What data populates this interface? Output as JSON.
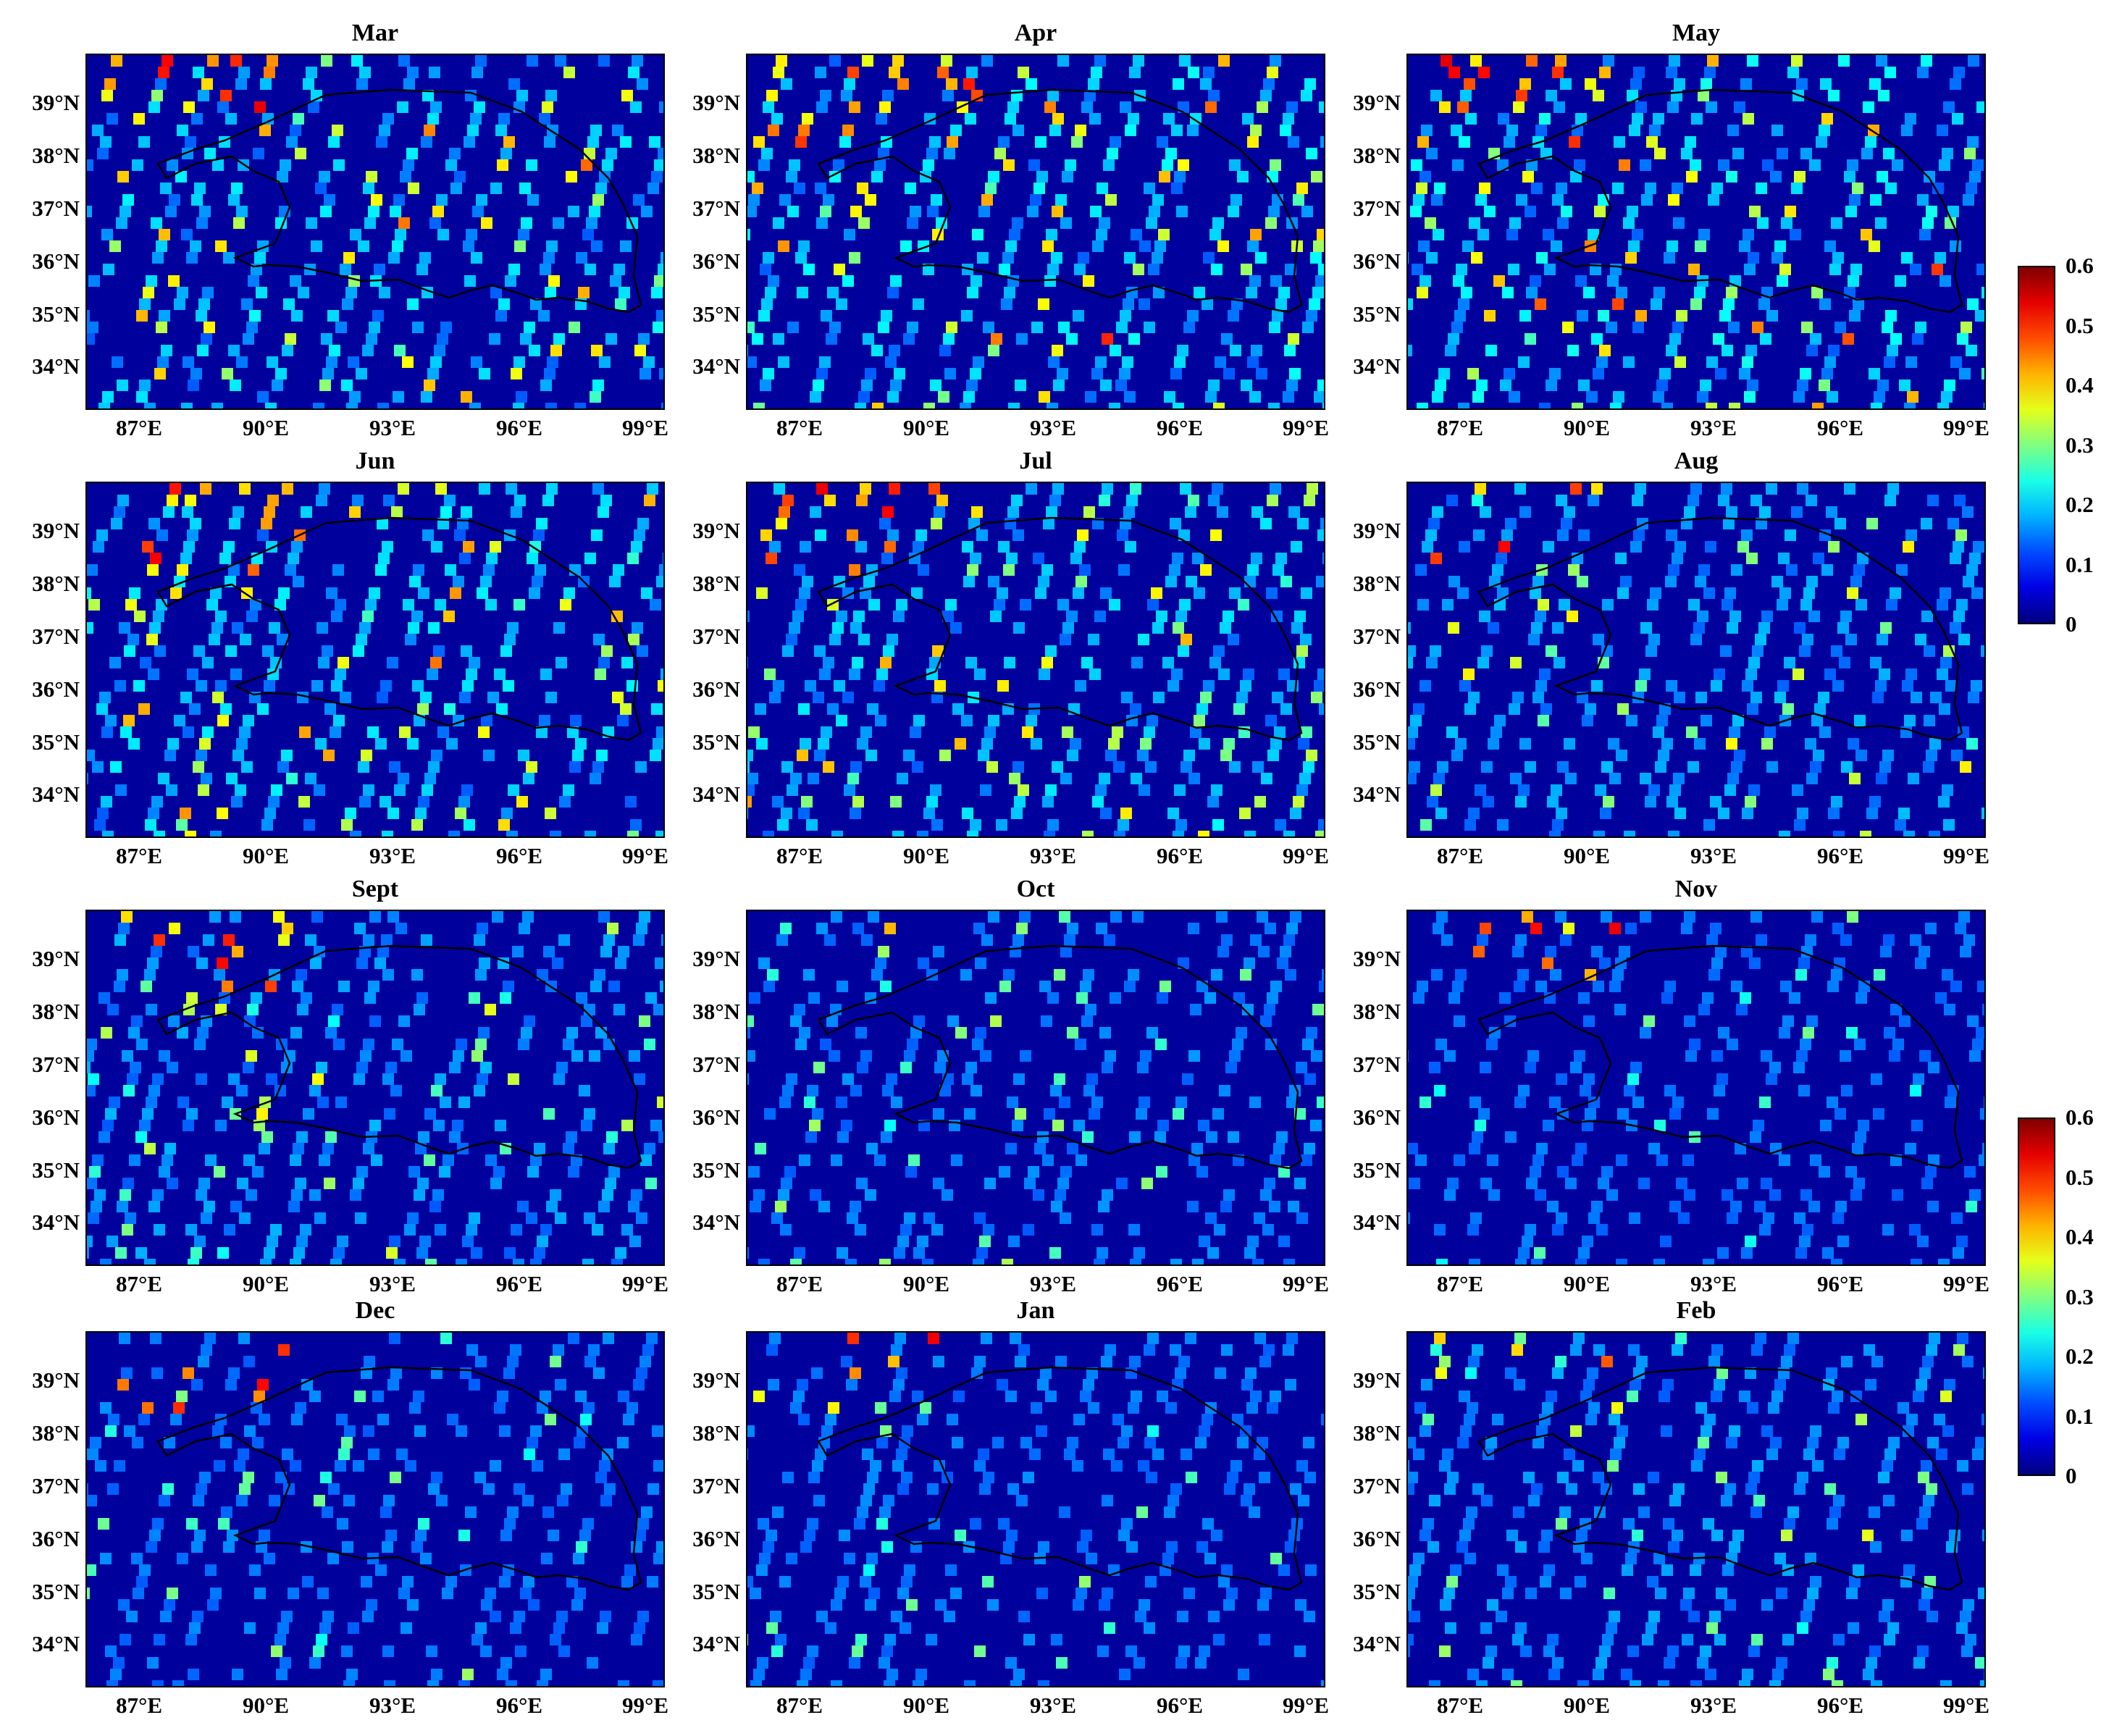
{
  "panels": [
    {
      "title": "Mar",
      "seed": 3,
      "intensity": 0.85
    },
    {
      "title": "Apr",
      "seed": 4,
      "intensity": 0.95
    },
    {
      "title": "May",
      "seed": 5,
      "intensity": 1.0
    },
    {
      "title": "Jun",
      "seed": 6,
      "intensity": 0.85
    },
    {
      "title": "Jul",
      "seed": 7,
      "intensity": 0.8
    },
    {
      "title": "Aug",
      "seed": 8,
      "intensity": 0.6
    },
    {
      "title": "Sept",
      "seed": 9,
      "intensity": 0.55
    },
    {
      "title": "Oct",
      "seed": 10,
      "intensity": 0.4
    },
    {
      "title": "Nov",
      "seed": 11,
      "intensity": 0.3
    },
    {
      "title": "Dec",
      "seed": 12,
      "intensity": 0.35
    },
    {
      "title": "Jan",
      "seed": 13,
      "intensity": 0.35
    },
    {
      "title": "Feb",
      "seed": 14,
      "intensity": 0.5
    }
  ],
  "y_ticks": [
    "39°N",
    "38°N",
    "37°N",
    "36°N",
    "35°N",
    "34°N"
  ],
  "x_ticks": [
    "87°E",
    "90°E",
    "93°E",
    "96°E",
    "99°E"
  ],
  "colorbar": {
    "labels": [
      "0.6",
      "0.5",
      "0.4",
      "0.3",
      "0.2",
      "0.1",
      "0"
    ],
    "min": 0,
    "max": 0.6,
    "colormap": "jet"
  },
  "colors": {
    "background_low": "#00009c",
    "boundary": "#000000"
  }
}
